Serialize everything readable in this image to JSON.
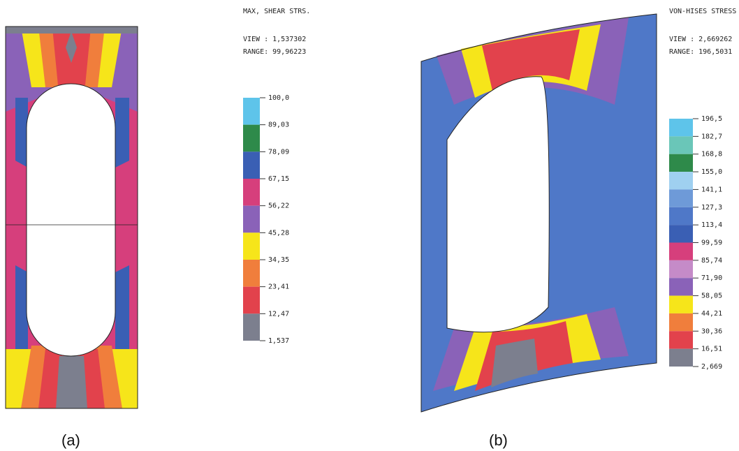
{
  "panels": [
    {
      "title": "MAX, SHEAR STRS.",
      "view": "VIEW : 1,537302",
      "range": "RANGE: 99,96223",
      "legend": {
        "labels": [
          "100,0",
          "89,03",
          "78,09",
          "67,15",
          "56,22",
          "45,28",
          "34,35",
          "23,41",
          "12,47",
          "1,537"
        ],
        "colors": [
          "#5ec4ea",
          "#2e8a4a",
          "#3a5fb4",
          "#d63f7c",
          "#8a62b8",
          "#f6e51a",
          "#f07e3c",
          "#e2424c",
          "#7c7f8e"
        ]
      },
      "caption": "(a)"
    },
    {
      "title": "VON-HISES STRESS",
      "view": "VIEW : 2,669262",
      "range": "RANGE: 196,5031",
      "legend": {
        "labels": [
          "196,5",
          "182,7",
          "168,8",
          "155,0",
          "141,1",
          "127,3",
          "113,4",
          "99,59",
          "85,74",
          "71,90",
          "58,05",
          "44,21",
          "30,36",
          "16,51",
          "2,669"
        ],
        "colors": [
          "#5ec4ea",
          "#6ac6b8",
          "#2e8a4a",
          "#9fd0f0",
          "#6e9ad8",
          "#4f78c8",
          "#3a5fb4",
          "#d63f7c",
          "#c58bc8",
          "#8a62b8",
          "#f6e51a",
          "#f07e3c",
          "#e2424c",
          "#7c7f8e"
        ]
      },
      "caption": "(b)"
    }
  ]
}
